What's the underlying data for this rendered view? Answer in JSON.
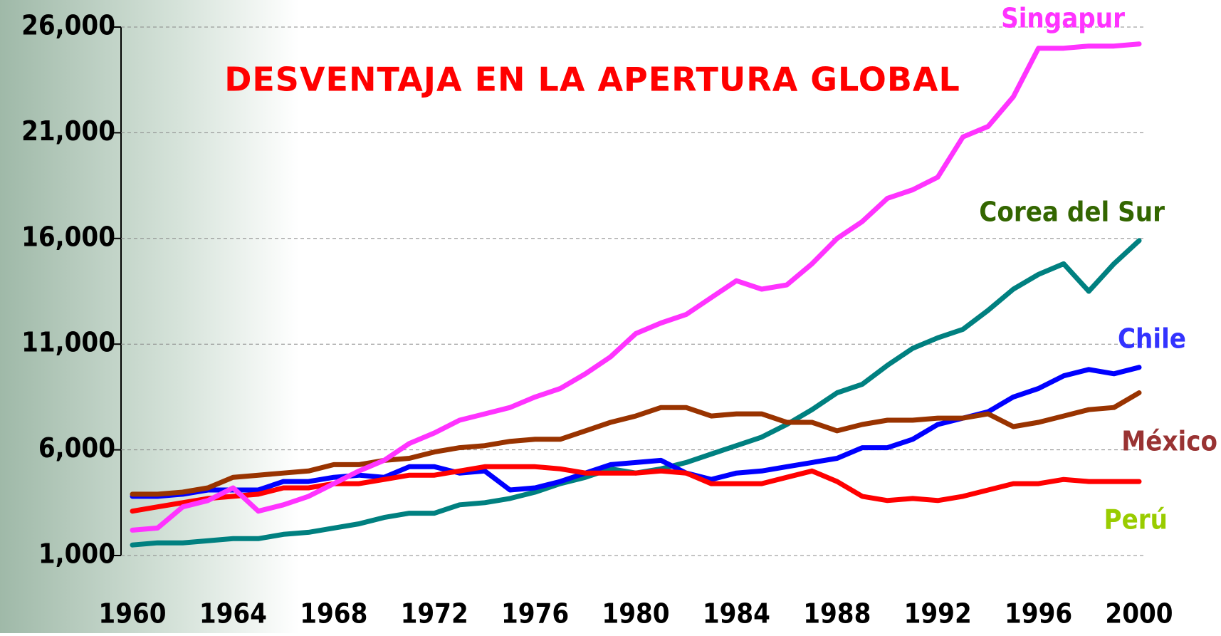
{
  "chart_data": {
    "type": "line",
    "title": "DESVENTAJA EN LA APERTURA GLOBAL",
    "x": [
      1960,
      1961,
      1962,
      1963,
      1964,
      1965,
      1966,
      1967,
      1968,
      1969,
      1970,
      1971,
      1972,
      1973,
      1974,
      1975,
      1976,
      1977,
      1978,
      1979,
      1980,
      1981,
      1982,
      1983,
      1984,
      1985,
      1986,
      1987,
      1988,
      1989,
      1990,
      1991,
      1992,
      1993,
      1994,
      1995,
      1996,
      1997,
      1998,
      1999,
      2000
    ],
    "xlim": [
      1960,
      2000
    ],
    "xticks": [
      1960,
      1964,
      1968,
      1972,
      1976,
      1980,
      1984,
      1988,
      1992,
      1996,
      2000
    ],
    "ylim": [
      1000,
      26000
    ],
    "yticks": [
      {
        "value": 1000,
        "label": "1,000"
      },
      {
        "value": 6000,
        "label": "6,000"
      },
      {
        "value": 11000,
        "label": "11,000"
      },
      {
        "value": 16000,
        "label": "16,000"
      },
      {
        "value": 21000,
        "label": "21,000"
      },
      {
        "value": 26000,
        "label": "26,000"
      }
    ],
    "grid": true,
    "series": [
      {
        "name": "Singapur",
        "color": "#ff33ff",
        "label_color": "#ff33ff",
        "values": [
          2200,
          2300,
          3300,
          3600,
          4200,
          3100,
          3400,
          3800,
          4400,
          5000,
          5500,
          6300,
          6800,
          7400,
          7700,
          8000,
          8500,
          8900,
          9600,
          10400,
          11500,
          12000,
          12400,
          13200,
          14000,
          13600,
          13800,
          14800,
          16000,
          16800,
          17900,
          18300,
          18900,
          20800,
          21300,
          22700,
          25000,
          25000,
          25100,
          25100,
          25200
        ]
      },
      {
        "name": "Corea del Sur",
        "color": "#008080",
        "label_color": "#336600",
        "values": [
          1500,
          1600,
          1600,
          1700,
          1800,
          1800,
          2000,
          2100,
          2300,
          2500,
          2800,
          3000,
          3000,
          3400,
          3500,
          3700,
          4000,
          4400,
          4700,
          5100,
          4900,
          5100,
          5400,
          5800,
          6200,
          6600,
          7200,
          7900,
          8700,
          9100,
          10000,
          10800,
          11300,
          11700,
          12600,
          13600,
          14300,
          14800,
          13500,
          14800,
          15900
        ]
      },
      {
        "name": "Chile",
        "color": "#0000ff",
        "label_color": "#3333ff",
        "values": [
          3800,
          3800,
          3900,
          4100,
          4100,
          4100,
          4500,
          4500,
          4700,
          4800,
          4700,
          5200,
          5200,
          4900,
          5000,
          4100,
          4200,
          4500,
          4900,
          5300,
          5400,
          5500,
          4900,
          4600,
          4900,
          5000,
          5200,
          5400,
          5600,
          6100,
          6100,
          6500,
          7200,
          7500,
          7800,
          8500,
          8900,
          9500,
          9800,
          9600,
          9900
        ]
      },
      {
        "name": "México",
        "color": "#993300",
        "label_color": "#993333",
        "values": [
          3900,
          3900,
          4000,
          4200,
          4700,
          4800,
          4900,
          5000,
          5300,
          5300,
          5500,
          5600,
          5900,
          6100,
          6200,
          6400,
          6500,
          6500,
          6900,
          7300,
          7600,
          8000,
          8000,
          7600,
          7700,
          7700,
          7300,
          7300,
          6900,
          7200,
          7400,
          7400,
          7500,
          7500,
          7700,
          7100,
          7300,
          7600,
          7900,
          8000,
          8700
        ]
      },
      {
        "name": "Perú",
        "color": "#ff0000",
        "label_color": "#99cc00",
        "values": [
          3100,
          3300,
          3500,
          3700,
          3800,
          3900,
          4200,
          4200,
          4400,
          4400,
          4600,
          4800,
          4800,
          5000,
          5200,
          5200,
          5200,
          5100,
          4900,
          4900,
          4900,
          5000,
          4900,
          4400,
          4400,
          4400,
          4700,
          5000,
          4500,
          3800,
          3600,
          3700,
          3600,
          3800,
          4100,
          4400,
          4400,
          4600,
          4500,
          4500,
          4500
        ]
      }
    ]
  }
}
